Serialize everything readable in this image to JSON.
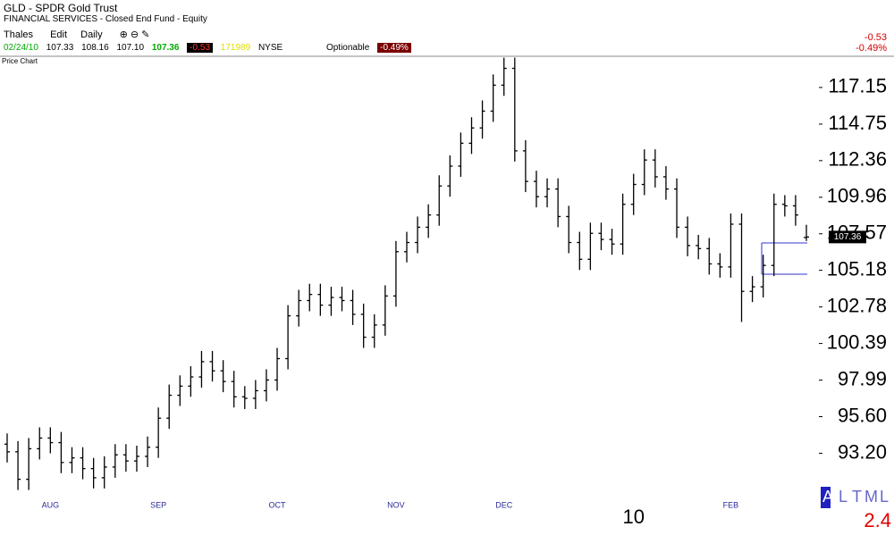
{
  "header": {
    "title": "GLD - SPDR Gold Trust",
    "subtitle": "FINANCIAL SERVICES - Closed End Fund - Equity",
    "toolbar": [
      "Thales",
      "Edit",
      "Daily"
    ],
    "date": "02/24/10",
    "open": "107.33",
    "high": "108.16",
    "low": "107.10",
    "last": "107.36",
    "change": "-0.53",
    "volume": "171989",
    "exchange": "NYSE",
    "optionable": "Optionable",
    "change_pct": "-0.49%",
    "right_change": "-0.53",
    "right_change_pct": "-0.49%"
  },
  "panel_label": "Price Chart",
  "footer": {
    "letters": [
      "A",
      "L",
      "T",
      "M",
      "L"
    ],
    "value": "2.4"
  },
  "chart_data": {
    "type": "ohlc",
    "color": "#000000",
    "categories": [
      null,
      null,
      null,
      null,
      "AUG",
      null,
      null,
      null,
      null,
      null,
      null,
      null,
      null,
      null,
      "SEP",
      null,
      null,
      null,
      null,
      null,
      null,
      null,
      null,
      null,
      null,
      "OCT",
      null,
      null,
      null,
      null,
      null,
      null,
      null,
      null,
      null,
      null,
      "NOV",
      null,
      null,
      null,
      null,
      null,
      null,
      null,
      null,
      null,
      "DEC",
      null,
      null,
      null,
      null,
      null,
      null,
      null,
      null,
      null,
      null,
      null,
      "10",
      null,
      null,
      null,
      null,
      null,
      null,
      null,
      null,
      "FEB",
      null,
      null,
      null,
      null,
      null,
      null,
      null
    ],
    "open": [
      93.8,
      93.3,
      91.5,
      93.5,
      94.2,
      93.9,
      92.6,
      92.9,
      92.2,
      91.6,
      92.3,
      93.1,
      92.7,
      93.0,
      93.6,
      95.5,
      97.0,
      97.6,
      98.2,
      99.2,
      98.6,
      97.9,
      96.9,
      96.8,
      97.3,
      98.0,
      99.4,
      102.2,
      103.2,
      103.6,
      102.9,
      103.4,
      103.2,
      102.3,
      100.8,
      101.6,
      103.5,
      106.4,
      107.0,
      108.0,
      108.8,
      110.7,
      112.0,
      113.5,
      114.5,
      115.6,
      117.3,
      118.4,
      113.0,
      111.0,
      110.0,
      110.5,
      108.7,
      107.0,
      105.9,
      107.6,
      107.2,
      106.9,
      109.5,
      110.8,
      112.4,
      111.3,
      110.5,
      108.0,
      106.8,
      106.6,
      105.6,
      105.4,
      108.2,
      103.8,
      104.1,
      105.5,
      109.5,
      109.4,
      107.33
    ],
    "high": [
      94.5,
      94.0,
      94.2,
      94.9,
      94.9,
      94.6,
      93.6,
      93.6,
      92.9,
      93.0,
      93.8,
      93.8,
      93.7,
      94.3,
      96.2,
      97.7,
      98.3,
      98.9,
      99.9,
      99.9,
      99.3,
      98.6,
      97.6,
      98.0,
      98.7,
      100.1,
      102.9,
      103.9,
      104.3,
      104.3,
      104.1,
      104.1,
      103.9,
      103.0,
      102.3,
      104.2,
      107.1,
      107.7,
      108.7,
      109.5,
      111.4,
      112.7,
      114.2,
      115.2,
      116.3,
      118.0,
      119.1,
      119.1,
      113.7,
      111.7,
      111.2,
      111.2,
      109.4,
      107.7,
      108.3,
      108.3,
      107.9,
      110.2,
      111.5,
      113.1,
      113.1,
      112.0,
      111.2,
      108.7,
      107.5,
      107.3,
      106.3,
      108.9,
      108.9,
      104.8,
      106.2,
      110.2,
      110.1,
      110.1,
      108.16
    ],
    "low": [
      92.6,
      90.8,
      90.8,
      92.8,
      93.2,
      91.9,
      91.9,
      91.5,
      90.9,
      90.9,
      91.6,
      92.0,
      92.0,
      92.3,
      92.9,
      94.8,
      96.3,
      96.9,
      97.5,
      97.9,
      97.2,
      96.2,
      96.1,
      96.1,
      96.6,
      97.3,
      98.7,
      101.5,
      102.5,
      102.2,
      102.2,
      102.5,
      101.6,
      100.1,
      100.1,
      100.9,
      102.8,
      105.7,
      106.3,
      107.3,
      108.1,
      110.0,
      111.3,
      112.8,
      113.8,
      114.9,
      116.6,
      112.3,
      110.3,
      109.3,
      109.3,
      108.0,
      106.3,
      105.2,
      105.2,
      106.5,
      106.2,
      106.2,
      108.8,
      110.1,
      110.6,
      109.8,
      107.3,
      106.1,
      105.9,
      104.9,
      104.7,
      104.7,
      101.8,
      103.1,
      103.4,
      104.8,
      108.7,
      108.1,
      107.1
    ],
    "close": [
      93.3,
      91.5,
      93.5,
      94.2,
      93.9,
      92.6,
      92.9,
      92.2,
      91.6,
      92.3,
      93.1,
      92.7,
      93.0,
      93.6,
      95.5,
      97.0,
      97.6,
      98.2,
      99.2,
      98.6,
      97.9,
      96.9,
      96.8,
      97.3,
      98.0,
      99.4,
      102.2,
      103.2,
      103.6,
      102.9,
      103.4,
      103.2,
      102.3,
      100.8,
      101.6,
      103.5,
      106.4,
      107.0,
      108.0,
      108.8,
      110.7,
      112.0,
      113.5,
      114.5,
      115.6,
      117.3,
      118.4,
      113.0,
      111.0,
      110.0,
      110.5,
      108.7,
      107.0,
      105.9,
      107.6,
      107.2,
      106.9,
      109.5,
      110.8,
      112.4,
      111.3,
      110.5,
      108.0,
      106.8,
      106.6,
      105.6,
      105.4,
      108.2,
      103.8,
      104.1,
      105.5,
      109.5,
      109.4,
      108.8,
      107.36
    ],
    "ylim": [
      90.25,
      119.25
    ],
    "yticks": [
      117.15,
      114.75,
      112.36,
      109.96,
      107.57,
      105.18,
      102.78,
      100.39,
      97.99,
      {
        "value": 95.6,
        "label": "95.60"
      },
      {
        "value": 93.2,
        "label": "93.20"
      }
    ],
    "grid": false
  }
}
